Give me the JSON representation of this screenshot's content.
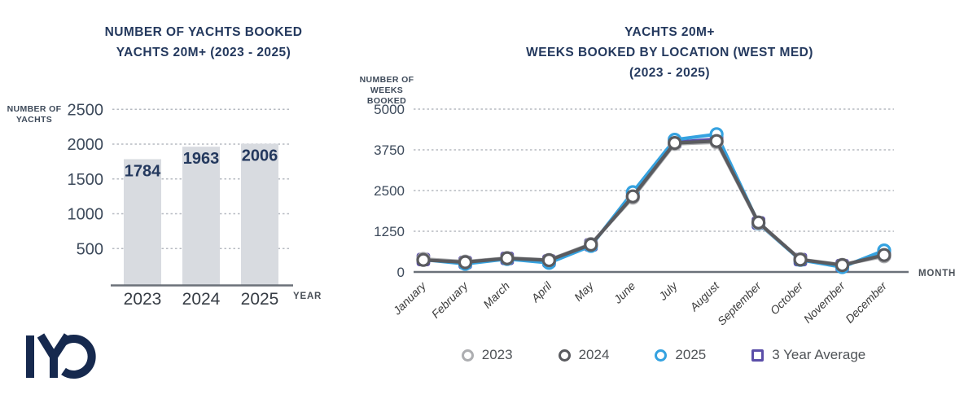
{
  "logo": {
    "text": "IYC",
    "color": "#16294e"
  },
  "colors": {
    "title_navy": "#24395e",
    "bar_fill": "#d8dbe0",
    "grid": "#b6bac1",
    "series_2023": "#adaeb1",
    "series_2024": "#5a5b5f",
    "series_2025": "#35a2e0",
    "series_avg": "#5b4ea9"
  },
  "chart_data": [
    {
      "type": "bar",
      "title_lines": [
        "NUMBER OF YACHTS BOOKED",
        "YACHTS 20M+ (2023 - 2025)"
      ],
      "ylabel_lines": [
        "NUMBER OF",
        "YACHTS"
      ],
      "xlabel": "YEAR",
      "categories": [
        "2023",
        "2024",
        "2025"
      ],
      "values": [
        1784,
        1963,
        2006
      ],
      "bar_labels": [
        "1784",
        "1963",
        "2006"
      ],
      "yticks": [
        500,
        1000,
        1500,
        2000,
        2500
      ],
      "ylim": [
        0,
        2500
      ],
      "grid": "dashed horizontal",
      "bar_color": "#d8dbe0",
      "value_label_color": "#24395e"
    },
    {
      "type": "line",
      "title_lines": [
        "YACHTS 20M+",
        "WEEKS BOOKED BY LOCATION (WEST MED)",
        "(2023 - 2025)"
      ],
      "ylabel_lines": [
        "NUMBER OF",
        "WEEKS BOOKED"
      ],
      "xlabel": "MONTH",
      "categories": [
        "January",
        "February",
        "March",
        "April",
        "May",
        "June",
        "July",
        "August",
        "September",
        "October",
        "November",
        "December"
      ],
      "yticks": [
        0,
        1250,
        2500,
        3750,
        5000
      ],
      "ylim": [
        0,
        5000
      ],
      "grid": "dashed horizontal",
      "legend_position": "bottom center",
      "series": [
        {
          "name": "2023",
          "color": "#adaeb1",
          "marker": "circle",
          "values": [
            400,
            320,
            430,
            370,
            860,
            2280,
            3930,
            3980,
            1500,
            390,
            220,
            480
          ]
        },
        {
          "name": "2024",
          "color": "#5a5b5f",
          "marker": "circle",
          "values": [
            370,
            300,
            420,
            360,
            840,
            2320,
            3960,
            4020,
            1520,
            380,
            210,
            520
          ]
        },
        {
          "name": "2025",
          "color": "#35a2e0",
          "marker": "circle",
          "values": [
            380,
            250,
            400,
            280,
            800,
            2450,
            4060,
            4230,
            1490,
            370,
            150,
            660
          ]
        },
        {
          "name": "3 Year Average",
          "color": "#5b4ea9",
          "marker": "square",
          "values": [
            383,
            290,
            417,
            337,
            833,
            2350,
            3983,
            4077,
            1503,
            380,
            193,
            553
          ]
        }
      ]
    }
  ]
}
